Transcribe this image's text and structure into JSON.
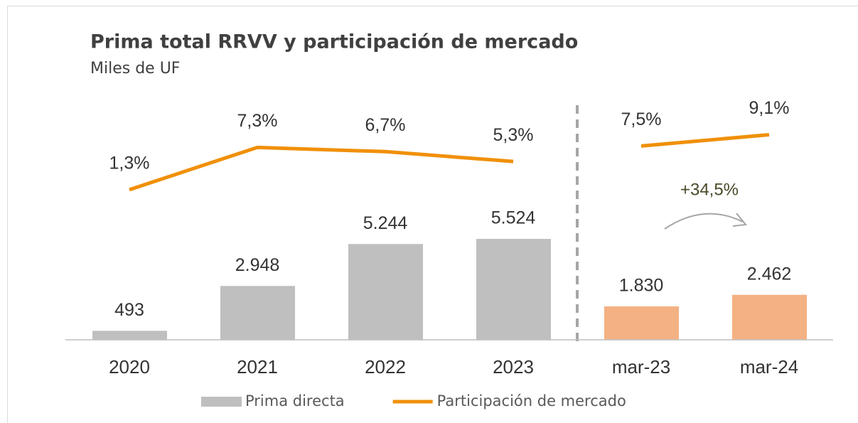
{
  "chart_data": {
    "type": "bar",
    "title": "Prima total RRVV y participación de mercado",
    "subtitle": "Miles de UF",
    "categories": [
      "2020",
      "2021",
      "2022",
      "2023",
      "mar-23",
      "mar-24"
    ],
    "series": [
      {
        "name": "Prima directa",
        "type": "bar",
        "color": "#bfbfbf",
        "colors": [
          "#bfbfbf",
          "#bfbfbf",
          "#bfbfbf",
          "#bfbfbf",
          "#f4b183",
          "#f4b183"
        ],
        "values": [
          493,
          2948,
          5244,
          5524,
          1830,
          2462
        ],
        "value_labels": [
          "493",
          "2.948",
          "5.244",
          "5.524",
          "1.830",
          "2.462"
        ]
      },
      {
        "name": "Participación de mercado",
        "type": "line",
        "axis": "y2",
        "color": "#f0900a",
        "values": [
          1.3,
          7.3,
          6.7,
          5.3,
          7.5,
          9.1
        ],
        "value_labels": [
          "1,3%",
          "7,3%",
          "6,7%",
          "5,3%",
          "7,5%",
          "9,1%"
        ]
      }
    ],
    "ylim": [
      0,
      13500
    ],
    "y2lim": [
      -20,
      15
    ],
    "separator_after": 3,
    "annotation": "+34,5%",
    "legend": "bottom"
  }
}
